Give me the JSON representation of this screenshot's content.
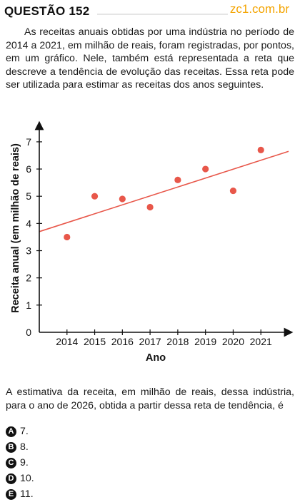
{
  "header": {
    "question_label": "QUESTÃO 152",
    "brand": "zc1.com.br"
  },
  "statement": "As receitas anuais obtidas por uma indústria no período de 2014 a 2021, em milhão de reais, foram registradas, por pontos, em um gráfico. Nele, também está representada a reta que descreve a tendência de evolução das receitas. Essa reta pode ser utilizada para estimar as receitas dos anos seguintes.",
  "question": "A estimativa da receita, em milhão de reais, dessa indústria, para o ano de 2026, obtida a partir dessa reta de tendência, é",
  "options": [
    {
      "letter": "A",
      "text": "7."
    },
    {
      "letter": "B",
      "text": "8."
    },
    {
      "letter": "C",
      "text": "9."
    },
    {
      "letter": "D",
      "text": "10."
    },
    {
      "letter": "E",
      "text": "11."
    }
  ],
  "colors": {
    "brand": "#f4a400",
    "points": "#e8574a",
    "trend_line": "#e8574a",
    "axes": "#111111"
  },
  "chart_data": {
    "type": "scatter",
    "title": "",
    "xlabel": "Ano",
    "ylabel": "Receita anual (em milhão de reais)",
    "x": [
      2014,
      2015,
      2016,
      2017,
      2018,
      2019,
      2020,
      2021
    ],
    "y": [
      3.5,
      5.0,
      4.9,
      4.6,
      5.6,
      6.0,
      5.2,
      6.7
    ],
    "yticks": [
      0,
      1,
      2,
      3,
      4,
      5,
      6,
      7
    ],
    "ylim": [
      0,
      7.6
    ],
    "xlim": [
      2013.0,
      2022.0
    ],
    "trend_line": {
      "x": [
        2013.0,
        2022.0
      ],
      "y": [
        3.7,
        6.65
      ]
    },
    "grid": false,
    "legend": "none"
  }
}
